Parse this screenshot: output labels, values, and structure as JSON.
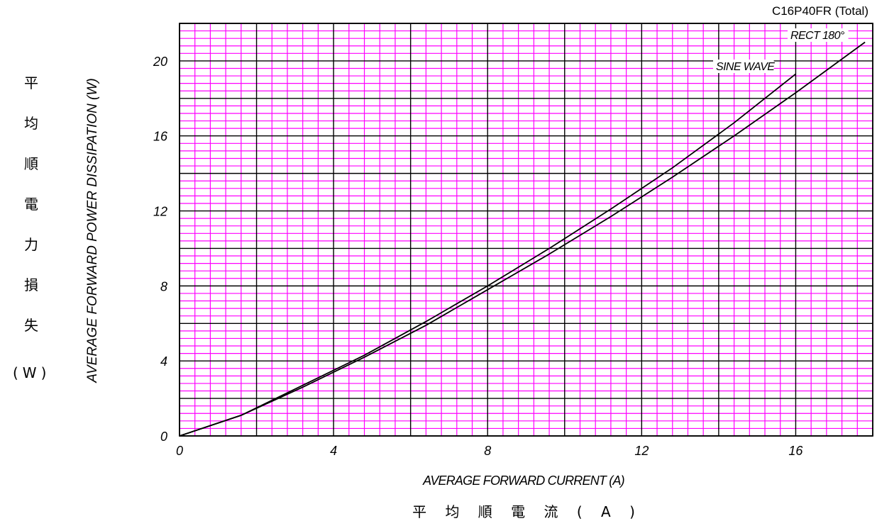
{
  "model_label": "C16P40FR (Total)",
  "y_title_cjk": [
    "平",
    "均",
    "順",
    "電",
    "力",
    "損",
    "失"
  ],
  "y_title_cjk_unit": "(W)",
  "x_title_cjk": [
    "平",
    "均",
    "順",
    "電",
    "流",
    "(",
    "A",
    ")"
  ],
  "colors": {
    "minor_grid": "#ff00ff",
    "major_grid": "#000000",
    "curve": "#000000",
    "background": "#ffffff"
  },
  "chart_data": {
    "type": "line",
    "title": "C16P40FR (Total)",
    "xlabel": "AVERAGE FORWARD CURRENT (A)",
    "ylabel": "AVERAGE FORWARD POWER DISSIPATION (W)",
    "xlim": [
      0,
      18
    ],
    "ylim": [
      0,
      22
    ],
    "x_ticks": [
      "0",
      "4",
      "8",
      "12",
      "16"
    ],
    "y_ticks": [
      "0",
      "4",
      "8",
      "12",
      "16",
      "20"
    ],
    "x_tick_values": [
      0,
      4,
      8,
      12,
      16
    ],
    "y_tick_values": [
      0,
      4,
      8,
      12,
      16,
      20
    ],
    "major_grid_step": [
      2,
      2
    ],
    "minor_grid_step": [
      0.4,
      0.4
    ],
    "grid": true,
    "series": [
      {
        "name": "RECT 180°",
        "x": [
          0,
          1.6,
          3.2,
          4.8,
          6.4,
          8,
          9.6,
          11.2,
          12.8,
          14.4,
          16,
          17.8
        ],
        "y": [
          0,
          1.1,
          2.6,
          4.2,
          5.9,
          7.8,
          9.7,
          11.7,
          13.8,
          16,
          18.3,
          21
        ]
      },
      {
        "name": "SINE WAVE",
        "x": [
          0,
          1.6,
          3.2,
          4.8,
          6.4,
          8,
          9.6,
          11.2,
          12.8,
          14.4,
          16
        ],
        "y": [
          0,
          1.1,
          2.7,
          4.3,
          6.1,
          8,
          10,
          12.1,
          14.3,
          16.7,
          19.3
        ]
      }
    ]
  }
}
